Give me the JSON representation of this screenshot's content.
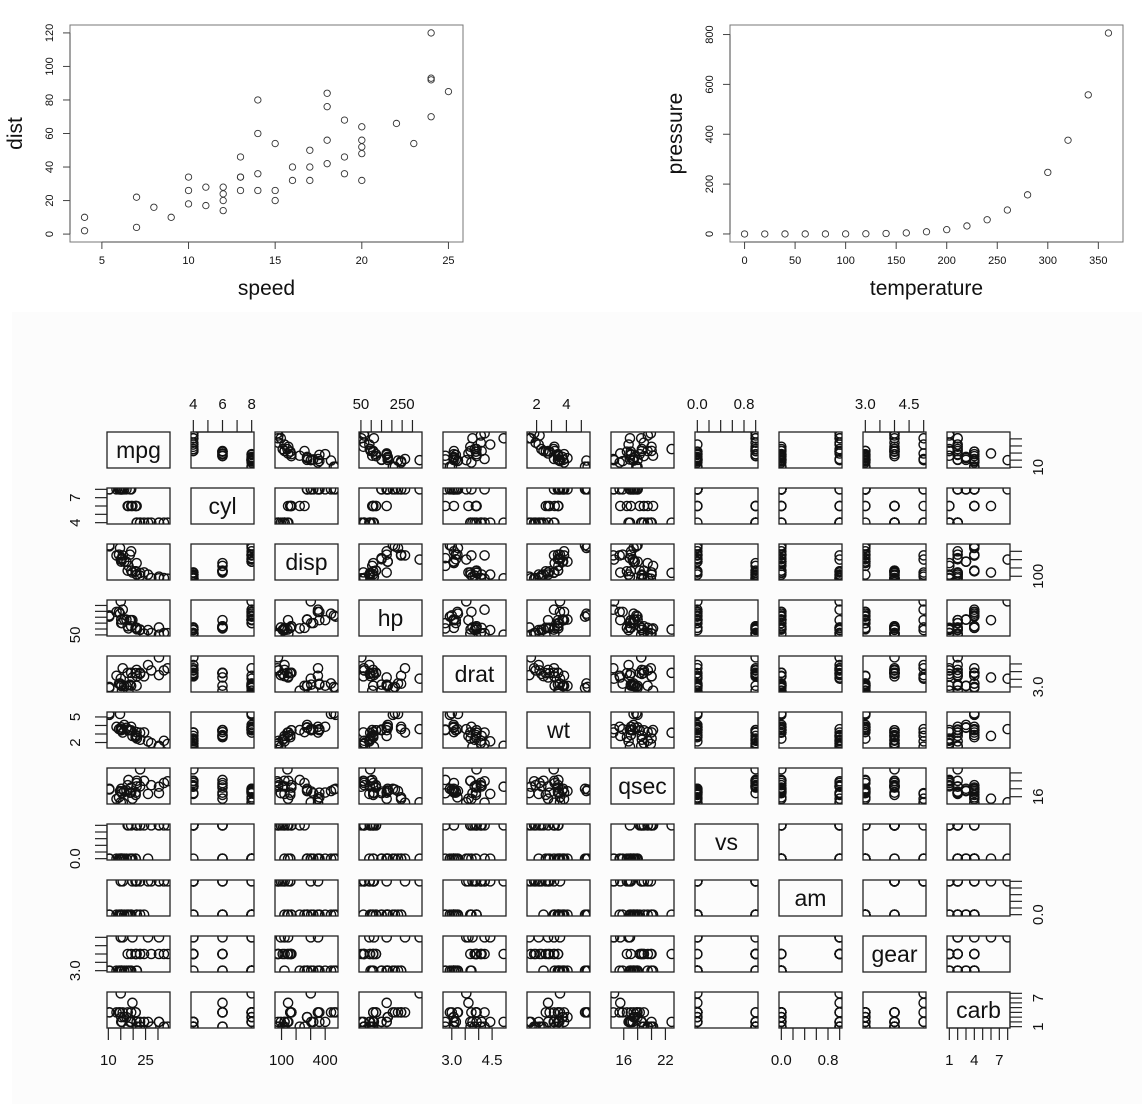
{
  "chart_data": [
    {
      "type": "scatter",
      "xlabel": "speed",
      "ylabel": "dist",
      "xlim": [
        3.16,
        25.84
      ],
      "ylim": [
        -4.72,
        124.72
      ],
      "xticks": [
        5,
        10,
        15,
        20,
        25
      ],
      "yticks": [
        0,
        20,
        40,
        60,
        80,
        100,
        120
      ],
      "grid": false,
      "x": [
        4,
        4,
        7,
        7,
        8,
        9,
        10,
        10,
        10,
        11,
        11,
        12,
        12,
        12,
        12,
        13,
        13,
        13,
        13,
        14,
        14,
        14,
        14,
        15,
        15,
        15,
        16,
        16,
        17,
        17,
        17,
        18,
        18,
        18,
        18,
        19,
        19,
        19,
        20,
        20,
        20,
        20,
        20,
        22,
        23,
        24,
        24,
        24,
        24,
        25
      ],
      "y": [
        2,
        10,
        4,
        22,
        16,
        10,
        18,
        26,
        34,
        17,
        28,
        14,
        20,
        24,
        28,
        26,
        34,
        34,
        46,
        26,
        36,
        60,
        80,
        20,
        26,
        54,
        32,
        40,
        32,
        40,
        50,
        42,
        56,
        76,
        84,
        36,
        46,
        68,
        32,
        48,
        52,
        56,
        64,
        66,
        54,
        70,
        92,
        93,
        120,
        85
      ]
    },
    {
      "type": "scatter",
      "xlabel": "temperature",
      "ylabel": "pressure",
      "xlim": [
        -14.4,
        374.4
      ],
      "ylim": [
        -32.24,
        838.24
      ],
      "xticks": [
        0,
        50,
        100,
        150,
        200,
        250,
        300,
        350
      ],
      "yticks": [
        0,
        200,
        400,
        600,
        800
      ],
      "grid": false,
      "x": [
        0,
        20,
        40,
        60,
        80,
        100,
        120,
        140,
        160,
        180,
        200,
        220,
        240,
        260,
        280,
        300,
        320,
        340,
        360
      ],
      "y": [
        0.0002,
        0.0012,
        0.006,
        0.03,
        0.09,
        0.27,
        0.75,
        1.85,
        4.2,
        8.8,
        17.3,
        32.1,
        57,
        96,
        157,
        247,
        376,
        558,
        806
      ]
    },
    {
      "type": "scatter-matrix",
      "grid": false,
      "variables": [
        {
          "name": "mpg",
          "ticks": [
            10,
            15,
            20,
            25,
            30
          ],
          "tick_labels": [
            {
              "v": 10,
              "t": "10"
            },
            {
              "v": 25,
              "t": "25"
            }
          ],
          "values": [
            21,
            21,
            22.8,
            21.4,
            18.7,
            18.1,
            14.3,
            24.4,
            22.8,
            19.2,
            17.8,
            16.4,
            17.3,
            15.2,
            10.4,
            10.4,
            14.7,
            32.4,
            30.4,
            33.9,
            21.5,
            15.5,
            15.2,
            13.3,
            19.2,
            27.3,
            26,
            30.4,
            15.8,
            19.7,
            15,
            21.4
          ]
        },
        {
          "name": "cyl",
          "ticks": [
            4,
            5,
            6,
            7,
            8
          ],
          "tick_labels": [
            {
              "v": 4,
              "t": "4"
            },
            {
              "v": 6,
              "t": "6"
            },
            {
              "v": 8,
              "t": "8"
            }
          ],
          "side_labels": [
            {
              "v": 4,
              "t": "4"
            },
            {
              "v": 7,
              "t": "7"
            }
          ],
          "values": [
            6,
            6,
            4,
            6,
            8,
            6,
            8,
            4,
            4,
            6,
            6,
            8,
            8,
            8,
            8,
            8,
            8,
            4,
            4,
            4,
            4,
            8,
            8,
            8,
            8,
            4,
            4,
            4,
            8,
            6,
            8,
            4
          ]
        },
        {
          "name": "disp",
          "ticks": [
            100,
            200,
            300,
            400
          ],
          "tick_labels": [
            {
              "v": 100,
              "t": "100"
            },
            {
              "v": 400,
              "t": "400"
            }
          ],
          "values": [
            160,
            160,
            108,
            258,
            360,
            225,
            360,
            146.7,
            140.8,
            167.6,
            167.6,
            275.8,
            275.8,
            275.8,
            472,
            460,
            440,
            78.7,
            75.7,
            71.1,
            120.1,
            318,
            304,
            350,
            400,
            79,
            120.3,
            95.1,
            351,
            145,
            301,
            121
          ]
        },
        {
          "name": "hp",
          "ticks": [
            50,
            100,
            150,
            200,
            250,
            300
          ],
          "tick_labels": [
            {
              "v": 50,
              "t": "50"
            },
            {
              "v": 250,
              "t": "250"
            }
          ],
          "side_labels": [
            {
              "v": 50,
              "t": "50"
            }
          ],
          "values": [
            110,
            110,
            93,
            110,
            175,
            105,
            245,
            62,
            95,
            123,
            123,
            180,
            180,
            180,
            205,
            215,
            230,
            66,
            52,
            65,
            97,
            150,
            150,
            245,
            175,
            66,
            91,
            113,
            264,
            175,
            335,
            109
          ]
        },
        {
          "name": "drat",
          "ticks": [
            3.0,
            3.5,
            4.0,
            4.5
          ],
          "tick_labels": [
            {
              "v": 3.0,
              "t": "3.0"
            },
            {
              "v": 4.5,
              "t": "4.5"
            }
          ],
          "values": [
            3.9,
            3.9,
            3.85,
            3.08,
            3.15,
            2.76,
            3.21,
            3.69,
            3.92,
            3.92,
            3.92,
            3.07,
            3.07,
            3.07,
            2.93,
            3,
            3.23,
            4.08,
            4.93,
            4.22,
            3.7,
            2.76,
            3.15,
            3.73,
            3.08,
            4.08,
            4.43,
            3.77,
            4.22,
            3.62,
            3.54,
            4.11
          ]
        },
        {
          "name": "wt",
          "ticks": [
            2,
            3,
            4,
            5
          ],
          "tick_labels": [
            {
              "v": 2,
              "t": "2"
            },
            {
              "v": 4,
              "t": "4"
            }
          ],
          "side_labels": [
            {
              "v": 2,
              "t": "2"
            },
            {
              "v": 5,
              "t": "5"
            }
          ],
          "values": [
            2.62,
            2.875,
            2.32,
            3.215,
            3.44,
            3.46,
            3.57,
            3.19,
            3.15,
            3.44,
            3.44,
            4.07,
            3.73,
            3.78,
            5.25,
            5.424,
            5.345,
            2.2,
            1.615,
            1.835,
            2.465,
            3.52,
            3.435,
            3.84,
            3.845,
            1.935,
            2.14,
            1.513,
            3.17,
            2.77,
            3.57,
            2.78
          ]
        },
        {
          "name": "qsec",
          "ticks": [
            16,
            18,
            20,
            22
          ],
          "tick_labels": [
            {
              "v": 16,
              "t": "16"
            },
            {
              "v": 22,
              "t": "22"
            }
          ],
          "side_labels": [
            {
              "v": 16,
              "t": "16"
            }
          ],
          "values": [
            16.46,
            17.02,
            18.61,
            19.44,
            17.02,
            20.22,
            15.84,
            20,
            22.9,
            18.3,
            18.9,
            17.4,
            17.6,
            18,
            17.98,
            17.82,
            17.42,
            19.47,
            18.52,
            19.9,
            20.01,
            16.87,
            17.3,
            15.41,
            17.05,
            18.9,
            16.7,
            16.9,
            14.5,
            15.5,
            14.6,
            18.6
          ]
        },
        {
          "name": "vs",
          "ticks": [
            0,
            0.2,
            0.4,
            0.6,
            0.8,
            1
          ],
          "tick_labels": [
            {
              "v": 0,
              "t": "0.0"
            },
            {
              "v": 0.8,
              "t": "0.8"
            }
          ],
          "side_labels": [
            {
              "v": 0,
              "t": "0.0"
            }
          ],
          "values": [
            0,
            0,
            1,
            1,
            0,
            1,
            0,
            1,
            1,
            1,
            1,
            0,
            0,
            0,
            0,
            0,
            0,
            1,
            1,
            1,
            1,
            0,
            0,
            0,
            0,
            1,
            0,
            1,
            0,
            0,
            0,
            1
          ]
        },
        {
          "name": "am",
          "ticks": [
            0,
            0.2,
            0.4,
            0.6,
            0.8,
            1
          ],
          "tick_labels": [
            {
              "v": 0,
              "t": "0.0"
            },
            {
              "v": 0.8,
              "t": "0.8"
            }
          ],
          "side_labels": [
            {
              "v": 0,
              "t": "0.0"
            }
          ],
          "values": [
            1,
            1,
            1,
            0,
            0,
            0,
            0,
            0,
            0,
            0,
            0,
            0,
            0,
            0,
            0,
            0,
            0,
            1,
            1,
            1,
            0,
            0,
            0,
            0,
            0,
            1,
            1,
            1,
            1,
            1,
            1,
            1
          ]
        },
        {
          "name": "gear",
          "ticks": [
            3,
            3.5,
            4,
            4.5,
            5
          ],
          "tick_labels": [
            {
              "v": 3,
              "t": "3.0"
            },
            {
              "v": 4.5,
              "t": "4.5"
            }
          ],
          "side_labels": [
            {
              "v": 3,
              "t": "3.0"
            }
          ],
          "values": [
            4,
            4,
            4,
            3,
            3,
            3,
            3,
            4,
            4,
            4,
            4,
            3,
            3,
            3,
            3,
            3,
            3,
            4,
            4,
            4,
            3,
            3,
            3,
            3,
            3,
            4,
            5,
            5,
            5,
            5,
            5,
            4
          ]
        },
        {
          "name": "carb",
          "ticks": [
            1,
            2,
            3,
            4,
            5,
            6,
            7,
            8
          ],
          "tick_labels": [
            {
              "v": 1,
              "t": "1"
            },
            {
              "v": 4,
              "t": "4"
            },
            {
              "v": 7,
              "t": "7"
            }
          ],
          "side_labels": [
            {
              "v": 1,
              "t": "1"
            },
            {
              "v": 7,
              "t": "7"
            }
          ],
          "values": [
            4,
            4,
            1,
            1,
            2,
            1,
            4,
            2,
            2,
            4,
            4,
            3,
            3,
            3,
            4,
            4,
            4,
            1,
            2,
            1,
            1,
            2,
            2,
            4,
            2,
            1,
            2,
            2,
            4,
            6,
            8,
            2
          ]
        }
      ]
    }
  ]
}
